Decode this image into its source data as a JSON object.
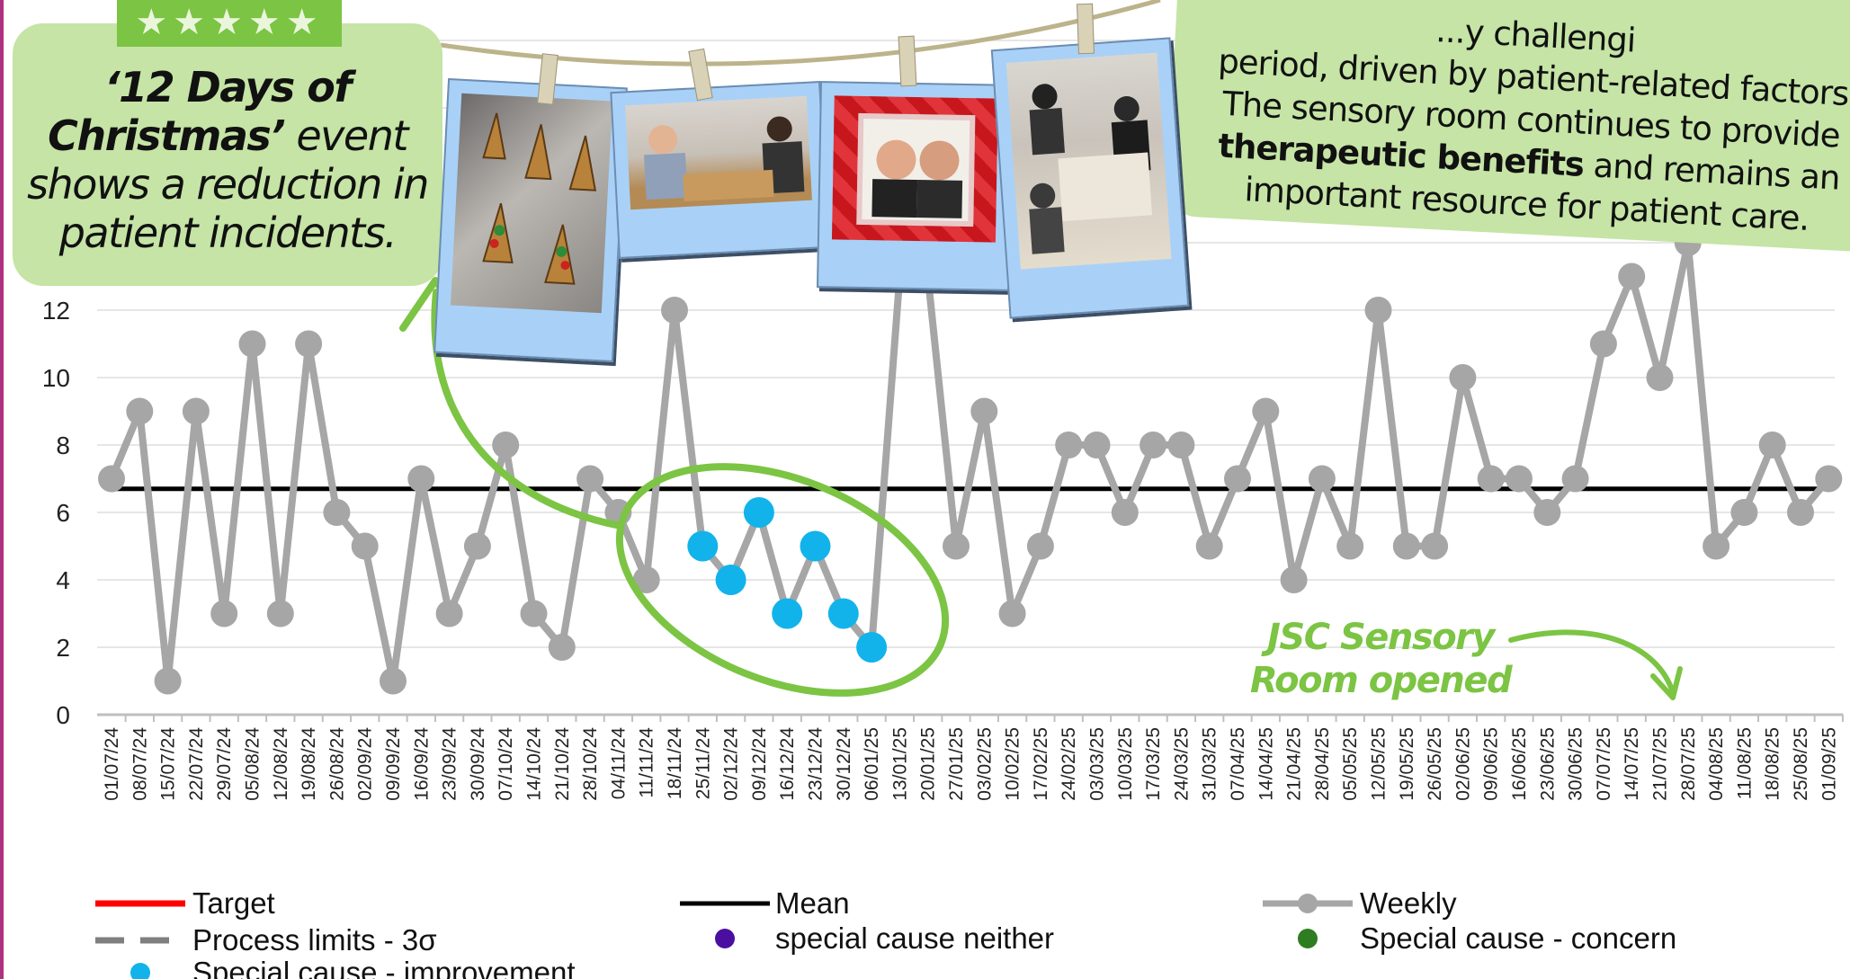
{
  "chart_data": {
    "type": "line",
    "ylim": [
      0,
      12
    ],
    "yticks": [
      0,
      2,
      4,
      6,
      8,
      10,
      12
    ],
    "mean": 6.7,
    "categories": [
      "01/07/24",
      "08/07/24",
      "15/07/24",
      "22/07/24",
      "29/07/24",
      "05/08/24",
      "12/08/24",
      "19/08/24",
      "26/08/24",
      "02/09/24",
      "09/09/24",
      "16/09/24",
      "23/09/24",
      "30/09/24",
      "07/10/24",
      "14/10/24",
      "21/10/24",
      "28/10/24",
      "04/11/24",
      "11/11/24",
      "18/11/24",
      "25/11/24",
      "02/12/24",
      "09/12/24",
      "16/12/24",
      "23/12/24",
      "30/12/24",
      "06/01/25",
      "13/01/25",
      "20/01/25",
      "27/01/25",
      "03/02/25",
      "10/02/25",
      "17/02/25",
      "24/02/25",
      "03/03/25",
      "10/03/25",
      "17/03/25",
      "24/03/25",
      "31/03/25",
      "07/04/25",
      "14/04/25",
      "21/04/25",
      "28/04/25",
      "05/05/25",
      "12/05/25",
      "19/05/25",
      "26/05/25",
      "02/06/25",
      "09/06/25",
      "16/06/25",
      "23/06/25",
      "30/06/25",
      "07/07/25",
      "14/07/25",
      "21/07/25",
      "28/07/25",
      "04/08/25",
      "11/08/25",
      "18/08/25",
      "25/08/25",
      "01/09/25"
    ],
    "series": [
      {
        "name": "Weekly",
        "values": [
          7,
          9,
          1,
          9,
          3,
          11,
          3,
          11,
          6,
          5,
          1,
          7,
          3,
          5,
          8,
          3,
          2,
          7,
          6,
          4,
          12,
          5,
          4,
          6,
          3,
          5,
          3,
          2,
          13,
          13,
          5,
          9,
          3,
          5,
          8,
          8,
          6,
          8,
          8,
          5,
          7,
          9,
          4,
          7,
          5,
          12,
          5,
          5,
          10,
          7,
          7,
          6,
          7,
          11,
          13,
          10,
          14,
          5,
          6,
          8,
          6,
          7
        ]
      }
    ],
    "improvement_points": [
      21,
      22,
      23,
      24,
      25,
      26,
      27
    ],
    "legend": [
      {
        "label": "Target",
        "color": "#ff0000",
        "style": "line"
      },
      {
        "label": "Mean",
        "color": "#000000",
        "style": "line"
      },
      {
        "label": "Weekly",
        "color": "#a6a6a6",
        "style": "line-marker"
      },
      {
        "label": "Process limits - 3σ",
        "color": "#7f7f7f",
        "style": "dash"
      },
      {
        "label": "special cause neither",
        "color": "#4b0fa0",
        "style": "dot"
      },
      {
        "label": "Special cause - concern",
        "color": "#2e7d20",
        "style": "dot"
      },
      {
        "label": "Special cause - improvement",
        "color": "#12b3ea",
        "style": "dot"
      }
    ],
    "legend_position": "bottom",
    "grid": true
  },
  "callouts": {
    "left_bold": "‘12 Days of Christmas’",
    "left_rest": " event shows a reduction in patient incidents.",
    "stars": "★★★★★",
    "right_line1": "...y challengi",
    "right_line2": "period, driven by patient-related factors",
    "right_line3": "The sensory room continues to provide",
    "right_bold": "therapeutic benefits",
    "right_line4": " and remains an",
    "right_line5": "important resource for patient care.",
    "sensory_room": "JSC Sensory Room opened"
  },
  "colors": {
    "callout_bg": "#c5e4a5",
    "accent_green": "#7cc443",
    "weekly_line": "#a6a6a6",
    "improvement": "#12b3ea",
    "polaroid": "#a9d1f7"
  }
}
